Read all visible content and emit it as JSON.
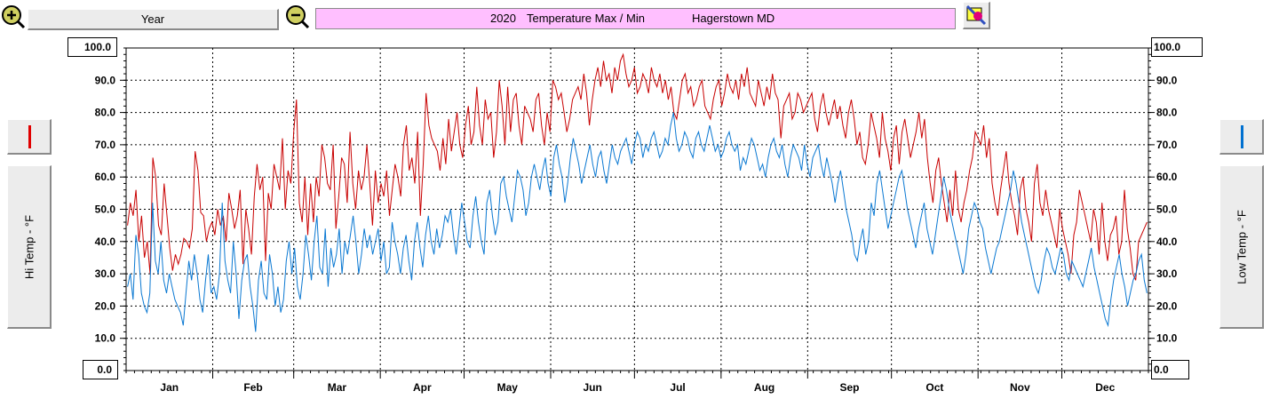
{
  "toolbar": {
    "zoom_in_icon": "zoom-in-icon",
    "zoom_out_icon": "zoom-out-icon",
    "period_label": "Year",
    "color_picker_icon": "paint-icon"
  },
  "title": {
    "year": "2020",
    "text": "Temperature Max / Min",
    "location": "Hagerstown MD",
    "background": "#ffbfff"
  },
  "left_panel": {
    "series_label": "Hi Temp - °F",
    "swatch_color": "#e00000"
  },
  "right_panel": {
    "series_label": "Low Temp - °F",
    "swatch_color": "#0070d0"
  },
  "y_range_boxes": {
    "left_max": "100.0",
    "left_min": "0.0",
    "right_max": "100.0",
    "right_min": "0.0"
  },
  "chart_data": {
    "type": "line",
    "title": "2020 Temperature Max / Min",
    "ylim": [
      0,
      100
    ],
    "ytick_labels": [
      "10.0",
      "20.0",
      "30.0",
      "40.0",
      "50.0",
      "60.0",
      "70.0",
      "80.0",
      "90.0"
    ],
    "month_labels": [
      "Jan",
      "Feb",
      "Mar",
      "Apr",
      "May",
      "Jun",
      "Jul",
      "Aug",
      "Sep",
      "Oct",
      "Nov",
      "Dec"
    ],
    "grid": true,
    "colors": {
      "hi": "#c80000",
      "low": "#0a78d2"
    },
    "series": [
      {
        "name": "Hi Temp - °F",
        "values": [
          45,
          52,
          48,
          56,
          40,
          48,
          35,
          40,
          30,
          66,
          60,
          45,
          42,
          58,
          48,
          38,
          31,
          36,
          33,
          36,
          41,
          40,
          38,
          44,
          68,
          62,
          49,
          48,
          40,
          44,
          46,
          42,
          50,
          45,
          48,
          40,
          55,
          50,
          44,
          48,
          56,
          33,
          50,
          44,
          36,
          54,
          64,
          56,
          60,
          34,
          55,
          50,
          64,
          60,
          56,
          72,
          50,
          62,
          58,
          74,
          84,
          52,
          46,
          60,
          42,
          58,
          46,
          60,
          54,
          70,
          66,
          58,
          56,
          70,
          44,
          54,
          66,
          64,
          52,
          74,
          58,
          50,
          62,
          56,
          60,
          70,
          58,
          45,
          62,
          52,
          58,
          54,
          62,
          48,
          56,
          64,
          60,
          54,
          70,
          76,
          62,
          66,
          58,
          74,
          48,
          64,
          86,
          76,
          72,
          70,
          68,
          62,
          72,
          64,
          78,
          68,
          74,
          80,
          70,
          66,
          76,
          82,
          70,
          74,
          88,
          76,
          70,
          84,
          78,
          80,
          66,
          74,
          90,
          82,
          70,
          88,
          74,
          84,
          86,
          76,
          70,
          82,
          80,
          78,
          74,
          84,
          86,
          76,
          70,
          80,
          74,
          90,
          88,
          84,
          86,
          80,
          74,
          78,
          84,
          86,
          88,
          84,
          92,
          86,
          76,
          84,
          90,
          94,
          88,
          96,
          90,
          92,
          86,
          94,
          90,
          96,
          98,
          92,
          88,
          90,
          94,
          86,
          88,
          92,
          90,
          86,
          94,
          90,
          88,
          92,
          86,
          90,
          84,
          88,
          80,
          78,
          84,
          90,
          92,
          86,
          88,
          82,
          84,
          88,
          90,
          82,
          80,
          78,
          84,
          88,
          90,
          82,
          86,
          92,
          88,
          86,
          90,
          84,
          92,
          88,
          94,
          86,
          84,
          82,
          90,
          86,
          82,
          88,
          84,
          92,
          86,
          84,
          72,
          82,
          84,
          86,
          78,
          80,
          86,
          84,
          80,
          82,
          84,
          86,
          78,
          74,
          82,
          86,
          80,
          76,
          80,
          84,
          78,
          82,
          76,
          72,
          80,
          84,
          78,
          70,
          74,
          66,
          64,
          70,
          80,
          76,
          72,
          66,
          80,
          72,
          68,
          62,
          72,
          76,
          64,
          74,
          78,
          72,
          66,
          70,
          74,
          80,
          72,
          78,
          66,
          58,
          52,
          62,
          66,
          58,
          52,
          46,
          56,
          48,
          62,
          50,
          46,
          52,
          56,
          62,
          66,
          74,
          72,
          70,
          76,
          66,
          72,
          58,
          52,
          48,
          56,
          62,
          68,
          58,
          52,
          48,
          42,
          56,
          60,
          50,
          46,
          40,
          58,
          64,
          52,
          48,
          56,
          50,
          46,
          42,
          38,
          50,
          44,
          40,
          36,
          30,
          42,
          46,
          56,
          52,
          48,
          44,
          40,
          50,
          46,
          36,
          52,
          40,
          34,
          42,
          44,
          48,
          36,
          40,
          56,
          44,
          38,
          30,
          28,
          40,
          42,
          44,
          46
        ]
      },
      {
        "name": "Low Temp - °F",
        "values": [
          26,
          30,
          22,
          42,
          36,
          24,
          20,
          18,
          24,
          52,
          34,
          30,
          40,
          28,
          24,
          30,
          26,
          22,
          20,
          18,
          14,
          24,
          34,
          28,
          36,
          30,
          22,
          18,
          28,
          36,
          24,
          26,
          22,
          30,
          52,
          34,
          28,
          24,
          40,
          30,
          16,
          28,
          34,
          36,
          26,
          20,
          12,
          28,
          34,
          24,
          22,
          36,
          30,
          20,
          26,
          18,
          22,
          34,
          40,
          30,
          38,
          26,
          22,
          30,
          42,
          36,
          28,
          40,
          48,
          32,
          30,
          44,
          26,
          38,
          32,
          36,
          44,
          30,
          40,
          36,
          42,
          48,
          40,
          30,
          36,
          44,
          38,
          42,
          36,
          40,
          44,
          34,
          40,
          30,
          32,
          46,
          40,
          36,
          30,
          38,
          42,
          34,
          28,
          40,
          46,
          38,
          32,
          42,
          48,
          40,
          36,
          44,
          38,
          42,
          48,
          46,
          50,
          42,
          36,
          44,
          52,
          46,
          40,
          38,
          48,
          54,
          46,
          40,
          36,
          52,
          56,
          48,
          42,
          46,
          58,
          60,
          54,
          50,
          46,
          54,
          62,
          60,
          56,
          48,
          52,
          60,
          64,
          60,
          56,
          62,
          66,
          58,
          54,
          66,
          70,
          64,
          60,
          52,
          58,
          66,
          72,
          68,
          64,
          58,
          62,
          66,
          70,
          64,
          60,
          66,
          68,
          62,
          58,
          64,
          70,
          66,
          64,
          68,
          70,
          72,
          68,
          64,
          70,
          74,
          72,
          66,
          70,
          68,
          72,
          74,
          70,
          66,
          68,
          72,
          70,
          76,
          80,
          72,
          68,
          70,
          74,
          72,
          68,
          66,
          72,
          74,
          70,
          68,
          72,
          76,
          72,
          68,
          70,
          66,
          68,
          72,
          74,
          70,
          68,
          70,
          62,
          66,
          64,
          68,
          72,
          70,
          66,
          62,
          64,
          60,
          66,
          70,
          72,
          68,
          66,
          70,
          64,
          60,
          66,
          70,
          68,
          66,
          62,
          70,
          64,
          60,
          66,
          68,
          70,
          64,
          60,
          66,
          62,
          58,
          52,
          58,
          62,
          56,
          50,
          46,
          42,
          36,
          34,
          40,
          44,
          36,
          40,
          52,
          48,
          58,
          62,
          56,
          50,
          44,
          48,
          52,
          56,
          60,
          62,
          56,
          50,
          46,
          42,
          38,
          44,
          48,
          52,
          44,
          40,
          36,
          42,
          48,
          54,
          60,
          56,
          50,
          46,
          42,
          38,
          34,
          30,
          36,
          44,
          48,
          52,
          50,
          46,
          44,
          38,
          34,
          30,
          34,
          38,
          40,
          44,
          48,
          52,
          56,
          62,
          58,
          52,
          46,
          42,
          38,
          34,
          30,
          26,
          24,
          28,
          34,
          38,
          36,
          32,
          30,
          34,
          38,
          36,
          30,
          28,
          34,
          32,
          30,
          28,
          26,
          30,
          34,
          38,
          32,
          28,
          24,
          20,
          16,
          14,
          22,
          28,
          32,
          36,
          30,
          26,
          20,
          24,
          28,
          30,
          34,
          36,
          28,
          24
        ]
      }
    ]
  }
}
